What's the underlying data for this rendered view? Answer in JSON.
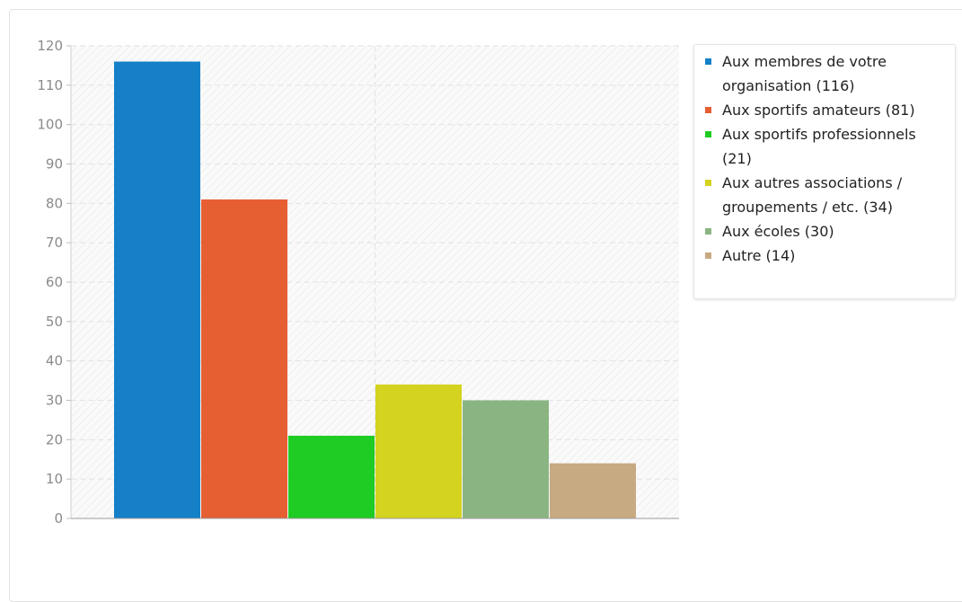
{
  "chart_data": {
    "type": "bar",
    "title": "",
    "xlabel": "",
    "ylabel": "",
    "ylim": [
      0,
      120
    ],
    "y_ticks": [
      0,
      10,
      20,
      30,
      40,
      50,
      60,
      70,
      80,
      90,
      100,
      110,
      120
    ],
    "grid": true,
    "legend_position": "right",
    "series": [
      {
        "name": "Aux membres de votre organisation (116)",
        "value": 116,
        "color": "#1580c8"
      },
      {
        "name": "Aux sportifs amateurs (81)",
        "value": 81,
        "color": "#e65f33"
      },
      {
        "name": "Aux sportifs professionnels (21)",
        "value": 21,
        "color": "#1fcc24"
      },
      {
        "name": "Aux autres associations / groupements / etc. (34)",
        "value": 34,
        "color": "#d4d31f"
      },
      {
        "name": "Aux écoles (30)",
        "value": 30,
        "color": "#8ab583"
      },
      {
        "name": "Autre (14)",
        "value": 14,
        "color": "#c8aa82"
      }
    ]
  }
}
